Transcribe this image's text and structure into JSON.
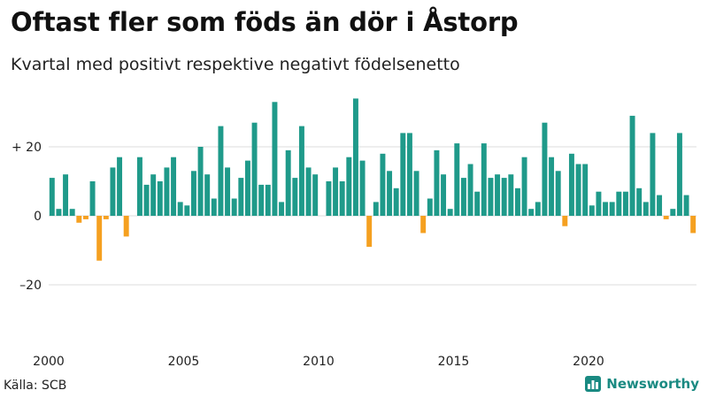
{
  "header": {
    "title": "Oftast fler som föds än dör i Åstorp",
    "subtitle": "Kvartal med positivt respektive negativt födelsenetto"
  },
  "footer": {
    "source": "Källa: SCB",
    "brand": "Newsworthy"
  },
  "colors": {
    "positive": "#1f9a8a",
    "negative": "#f5a020",
    "grid": "#dddddd",
    "brand": "#1a8a82"
  },
  "chart_data": {
    "type": "bar",
    "x_start": "2000 Q1",
    "x_end": "2023 Q4",
    "x_ticks": [
      "2000",
      "2005",
      "2010",
      "2015",
      "2020"
    ],
    "y_ticks": [
      "+ 20",
      "0",
      "–20"
    ],
    "ylim": [
      -30,
      33
    ],
    "grid": true,
    "values": [
      11,
      2,
      12,
      2,
      -2,
      -1,
      10,
      -13,
      -1,
      14,
      17,
      -6,
      0,
      17,
      9,
      12,
      10,
      14,
      17,
      4,
      3,
      13,
      20,
      12,
      5,
      26,
      14,
      5,
      11,
      16,
      27,
      9,
      9,
      33,
      4,
      19,
      11,
      26,
      14,
      12,
      0,
      10,
      14,
      10,
      17,
      34,
      16,
      -9,
      4,
      18,
      13,
      8,
      24,
      24,
      13,
      -5,
      5,
      19,
      12,
      2,
      21,
      11,
      15,
      7,
      21,
      11,
      12,
      11,
      12,
      8,
      17,
      2,
      4,
      27,
      17,
      13,
      -3,
      18,
      15,
      15,
      3,
      7,
      4,
      4,
      7,
      7,
      29,
      8,
      4,
      24,
      6,
      -1,
      2,
      24,
      6,
      -5
    ]
  }
}
